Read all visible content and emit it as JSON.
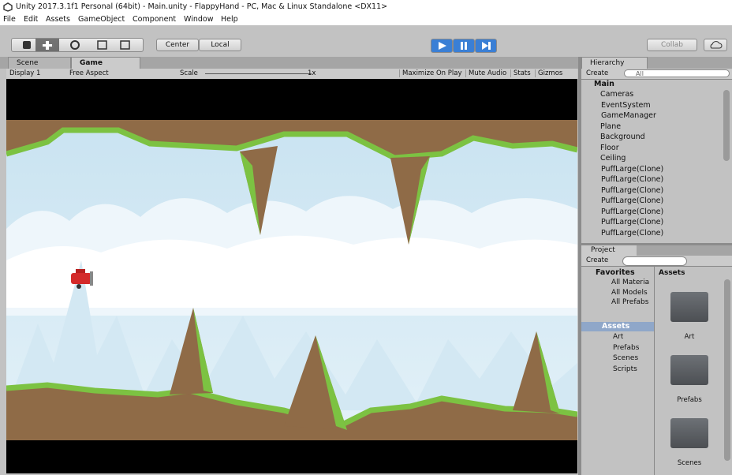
{
  "window": {
    "title": "Unity 2017.3.1f1 Personal (64bit) - Main.unity - FlappyHand - PC, Mac & Linux Standalone <DX11>"
  },
  "menu": [
    "File",
    "Edit",
    "Assets",
    "GameObject",
    "Component",
    "Window",
    "Help"
  ],
  "toolbar": {
    "pivot": "Center",
    "space": "Local",
    "collab": "Collab"
  },
  "tabs": {
    "scene": "Scene",
    "game": "Game",
    "hierarchy": "Hierarchy",
    "project": "Project"
  },
  "game_toolbar": {
    "display": "Display 1",
    "aspect": "Free Aspect",
    "scale_label": "Scale",
    "scale_value": "1x",
    "buttons": [
      "Maximize On Play",
      "Mute Audio",
      "Stats",
      "Gizmos"
    ]
  },
  "hierarchy": {
    "create": "Create",
    "search": "All",
    "scene": "Main",
    "items": [
      "Cameras",
      "EventSystem",
      "GameManager",
      "Plane",
      "Background",
      "Floor",
      "Ceiling",
      "PuffLarge(Clone)",
      "PuffLarge(Clone)",
      "PuffLarge(Clone)",
      "PuffLarge(Clone)",
      "PuffLarge(Clone)",
      "PuffLarge(Clone)",
      "PuffLarge(Clone)"
    ]
  },
  "project": {
    "create": "Create",
    "favorites": {
      "label": "Favorites",
      "items": [
        "All Materia",
        "All Models",
        "All Prefabs"
      ]
    },
    "assets": {
      "label": "Assets",
      "items": [
        "Art",
        "Prefabs",
        "Scenes",
        "Scripts"
      ]
    },
    "breadcrumb": "Assets",
    "folders": [
      "Art",
      "Prefabs",
      "Scenes"
    ]
  }
}
